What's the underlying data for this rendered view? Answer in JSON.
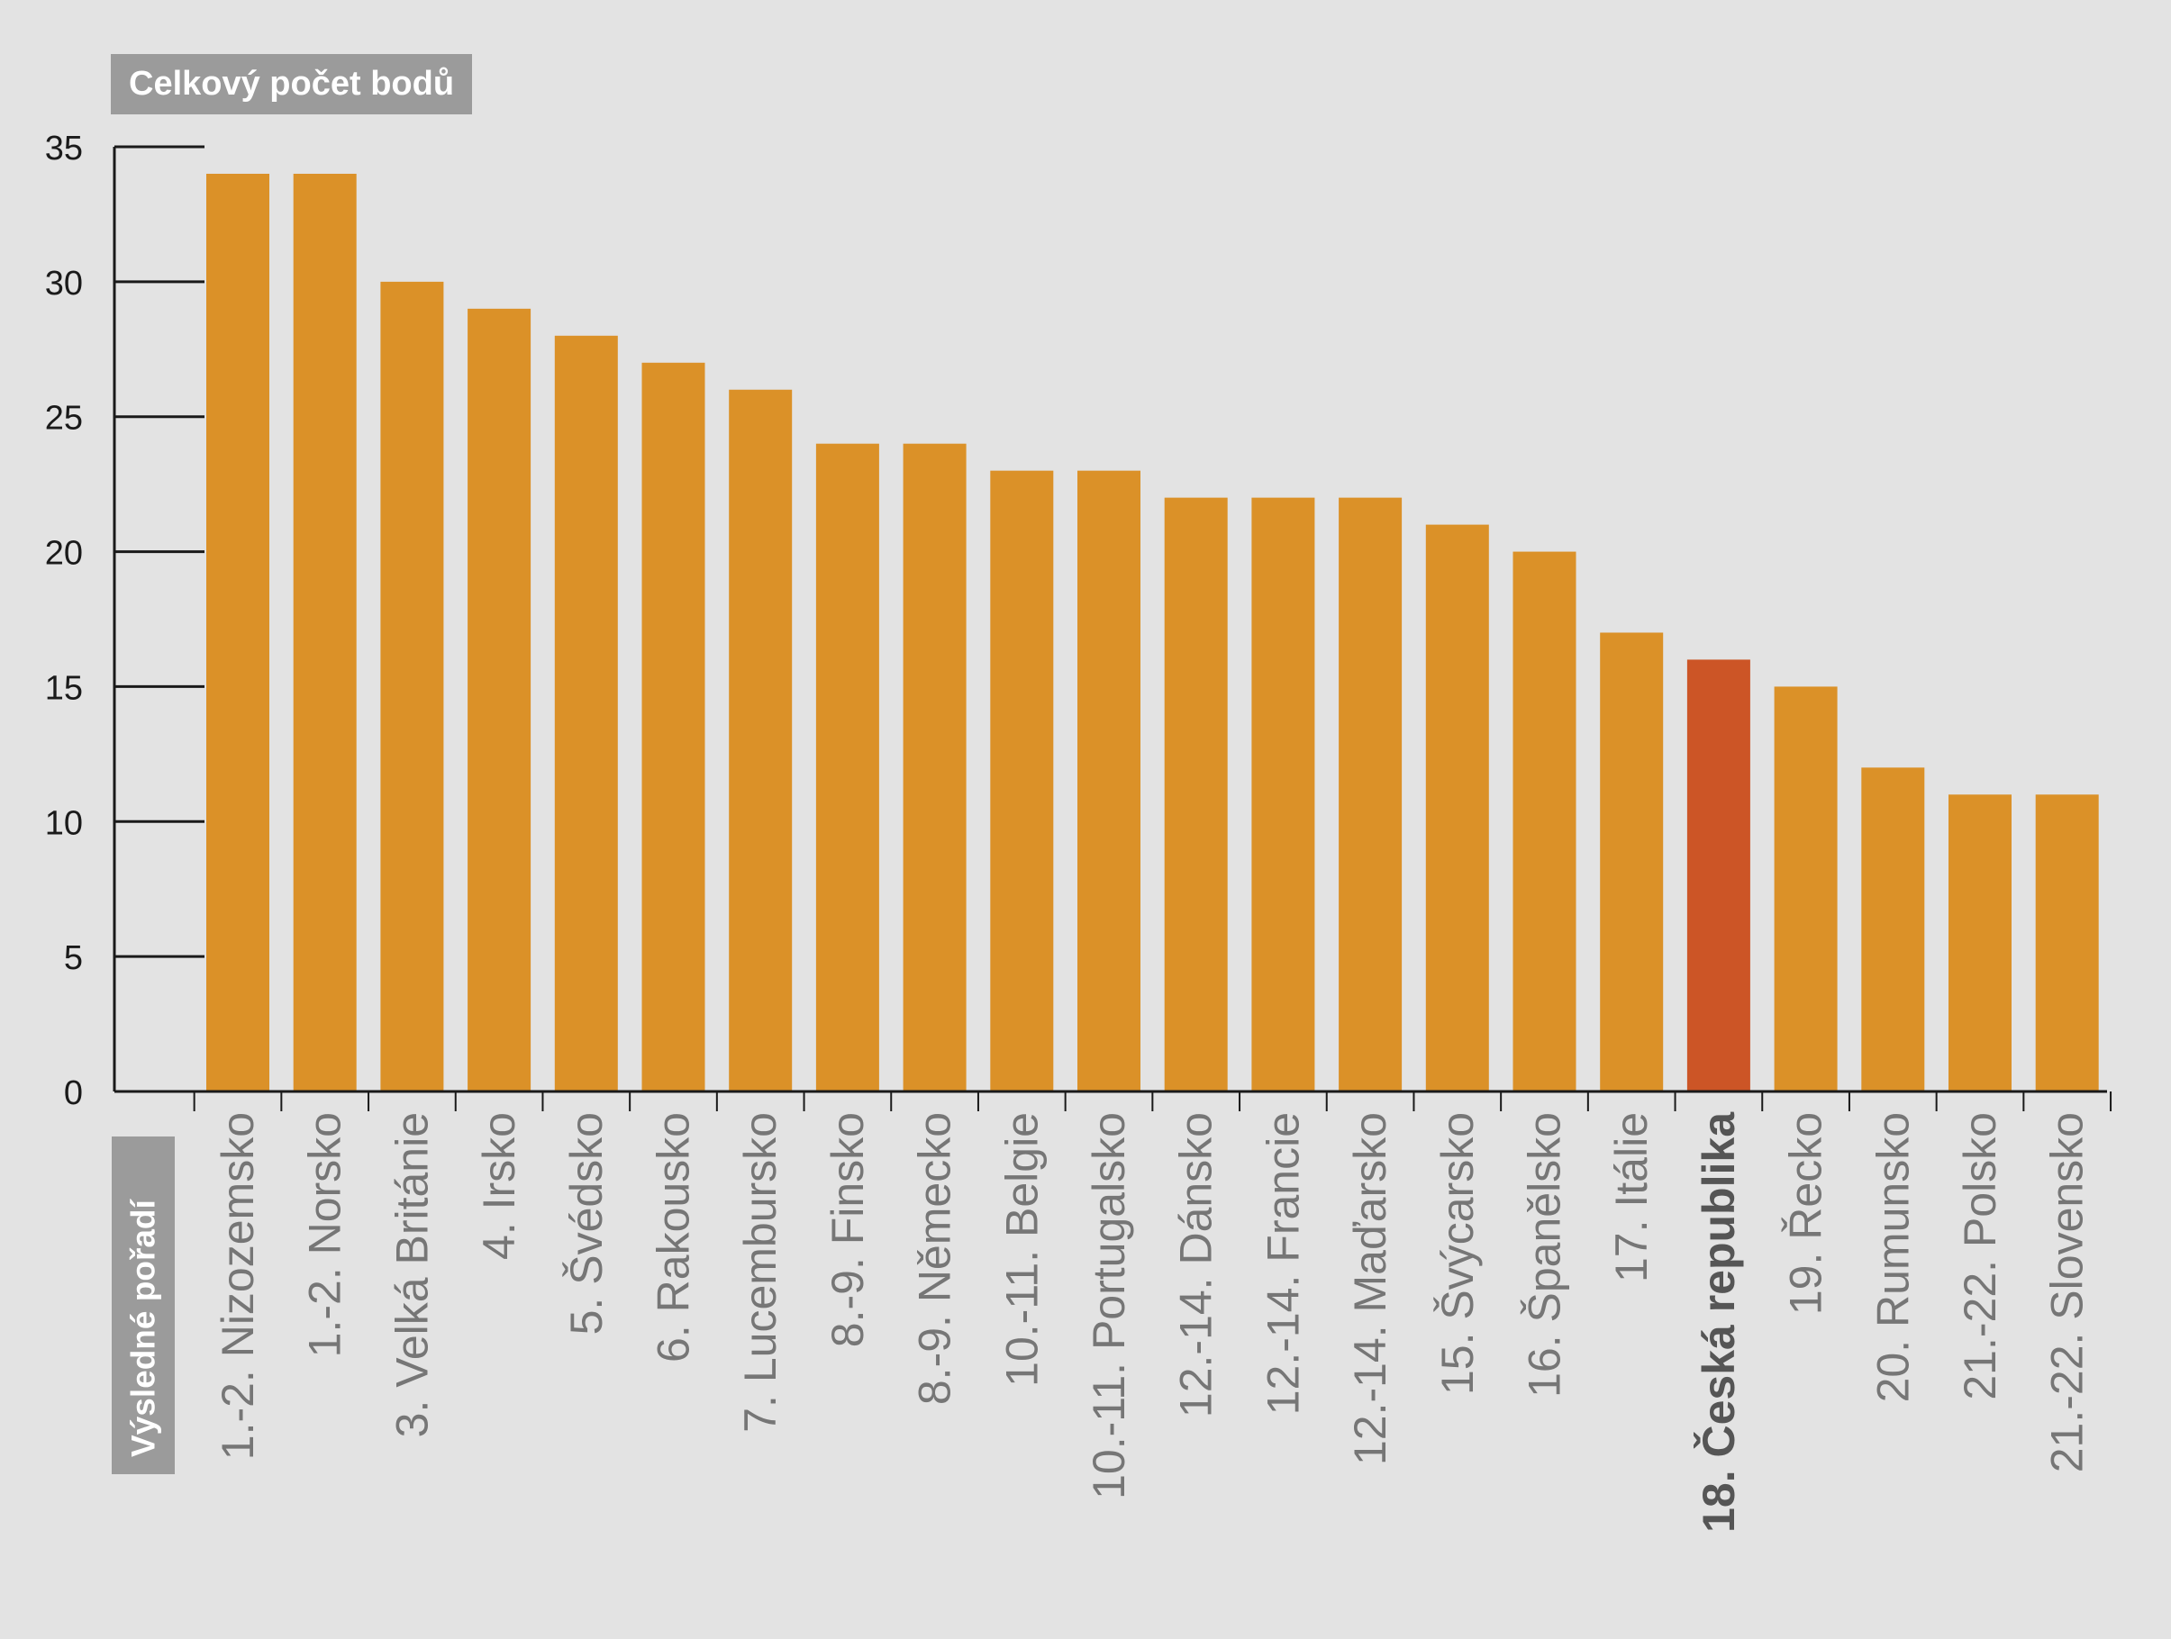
{
  "chart_data": {
    "type": "bar",
    "ylabel": "Celkový počet bodů",
    "xlabel": "Výsledné pořadí",
    "ylim": [
      0,
      35
    ],
    "yticks": [
      0,
      5,
      10,
      15,
      20,
      25,
      30,
      35
    ],
    "grid": false,
    "categories": [
      "1.-2. Nizozemsko",
      "1.-2. Norsko",
      "3. Velká Británie",
      "4. Irsko",
      "5. Švédsko",
      "6. Rakousko",
      "7. Lucembursko",
      "8.-9. Finsko",
      "8.-9. Německo",
      "10.-11. Belgie",
      "10.-11. Portugalsko",
      "12.-14. Dánsko",
      "12.-14. Francie",
      "12.-14. Maďarsko",
      "15. Švýcarsko",
      "16. Španělsko",
      "17. Itálie",
      "18. Česká republika",
      "19. Řecko",
      "20. Rumunsko",
      "21.-22. Polsko",
      "21.-22. Slovensko"
    ],
    "values": [
      34,
      34,
      30,
      29,
      28,
      27,
      26,
      24,
      24,
      23,
      23,
      22,
      22,
      22,
      21,
      20,
      17,
      16,
      15,
      12,
      11,
      11
    ],
    "highlight_category": "18. Česká republika",
    "colors": {
      "bar": "#db9128",
      "highlight_bar": "#cc5526",
      "axis": "#1a1a1a",
      "tick_label": "#1a1a1a",
      "category_label": "#767676",
      "highlight_label": "#555555",
      "title_box": "#9b9b9b",
      "background": "#e3e3e3"
    }
  }
}
